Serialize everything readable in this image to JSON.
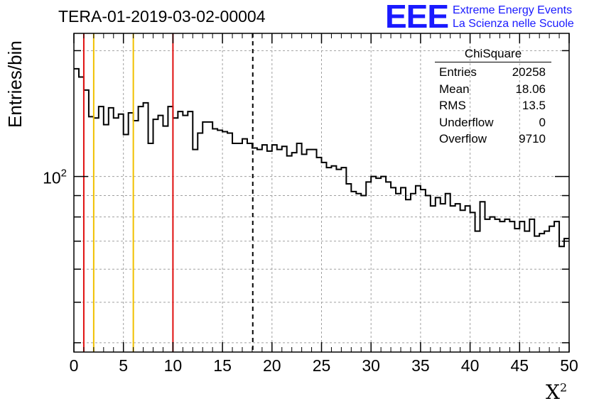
{
  "header": {
    "title": "TERA-01-2019-03-02-00004",
    "logo_text": "EEE",
    "logo_line1": "Extreme Energy Events",
    "logo_line2": "La Scienza nelle Scuole"
  },
  "stats_box": {
    "title": "ChiSquare",
    "rows": [
      {
        "label": "Entries",
        "value": "20258"
      },
      {
        "label": "Mean",
        "value": "18.06"
      },
      {
        "label": "RMS",
        "value": "13.5"
      },
      {
        "label": "Underflow",
        "value": "0"
      },
      {
        "label": "Overflow",
        "value": "9710"
      }
    ]
  },
  "colors": {
    "histogram": "#000000",
    "red_lines": "#e01010",
    "yellow_lines": "#f0c000",
    "mean_line": "#000000",
    "grid": "#a0a0a0",
    "logo": "#1a1aff"
  },
  "chart_data": {
    "type": "histogram",
    "title": "TERA-01-2019-03-02-00004",
    "xlabel": "X",
    "xlabel_superscript": "2",
    "ylabel": "Entries/bin",
    "yscale": "log",
    "xlim": [
      0,
      50
    ],
    "ylim": [
      38,
      220
    ],
    "x_ticks": [
      0,
      5,
      10,
      15,
      20,
      25,
      30,
      35,
      40,
      45,
      50
    ],
    "y_tick_label": {
      "base": "10",
      "exponent": "2",
      "value": 100
    },
    "grid": true,
    "bin_width": 0.5,
    "bin_start": 0,
    "bin_values": [
      181,
      173,
      161,
      139,
      138,
      147,
      133,
      146,
      138,
      141,
      126,
      142,
      136,
      147,
      150,
      120,
      137,
      140,
      132,
      147,
      138,
      143,
      140,
      143,
      116,
      127,
      135,
      135,
      130,
      129,
      128,
      127,
      120,
      120,
      123,
      120,
      117,
      116,
      119,
      115,
      119,
      116,
      118,
      112,
      114,
      120,
      113,
      116,
      116,
      111,
      108,
      105,
      106,
      104,
      105,
      96,
      92,
      91,
      90,
      97,
      100,
      99,
      100,
      97,
      94,
      91,
      94,
      88,
      91,
      95,
      93,
      90,
      85,
      89,
      86,
      91,
      85,
      86,
      83,
      85,
      82,
      74,
      87,
      79,
      80,
      79,
      78,
      79,
      78,
      75,
      78,
      74,
      79,
      72,
      73,
      74,
      76,
      78,
      68,
      71
    ],
    "vertical_lines": [
      {
        "x": 1,
        "color": "red"
      },
      {
        "x": 2,
        "color": "yellow"
      },
      {
        "x": 6,
        "color": "yellow"
      },
      {
        "x": 10,
        "color": "red"
      },
      {
        "x": 18.06,
        "color": "black",
        "style": "dashed"
      }
    ]
  }
}
